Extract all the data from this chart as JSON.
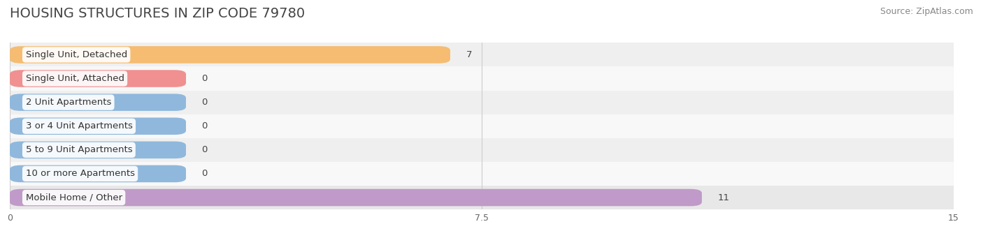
{
  "title": "HOUSING STRUCTURES IN ZIP CODE 79780",
  "source": "Source: ZipAtlas.com",
  "categories": [
    "Single Unit, Detached",
    "Single Unit, Attached",
    "2 Unit Apartments",
    "3 or 4 Unit Apartments",
    "5 to 9 Unit Apartments",
    "10 or more Apartments",
    "Mobile Home / Other"
  ],
  "values": [
    7,
    0,
    0,
    0,
    0,
    0,
    11
  ],
  "bar_colors": [
    "#f5bc72",
    "#f09090",
    "#90b8dc",
    "#90b8dc",
    "#90b8dc",
    "#90b8dc",
    "#c09ac8"
  ],
  "row_bg_colors": [
    "#efefef",
    "#f8f8f8",
    "#efefef",
    "#f8f8f8",
    "#efefef",
    "#f8f8f8",
    "#e8e8e8"
  ],
  "xlim": [
    0,
    15
  ],
  "xticks": [
    0,
    7.5,
    15
  ],
  "title_fontsize": 14,
  "source_fontsize": 9,
  "label_fontsize": 9.5,
  "value_fontsize": 9.5,
  "bar_height": 0.72,
  "title_color": "#444444",
  "source_color": "#888888",
  "label_color": "#333333",
  "value_color": "#444444",
  "grid_color": "#cccccc",
  "axis_bg_color": "#ffffff",
  "zero_bar_width": 2.8
}
